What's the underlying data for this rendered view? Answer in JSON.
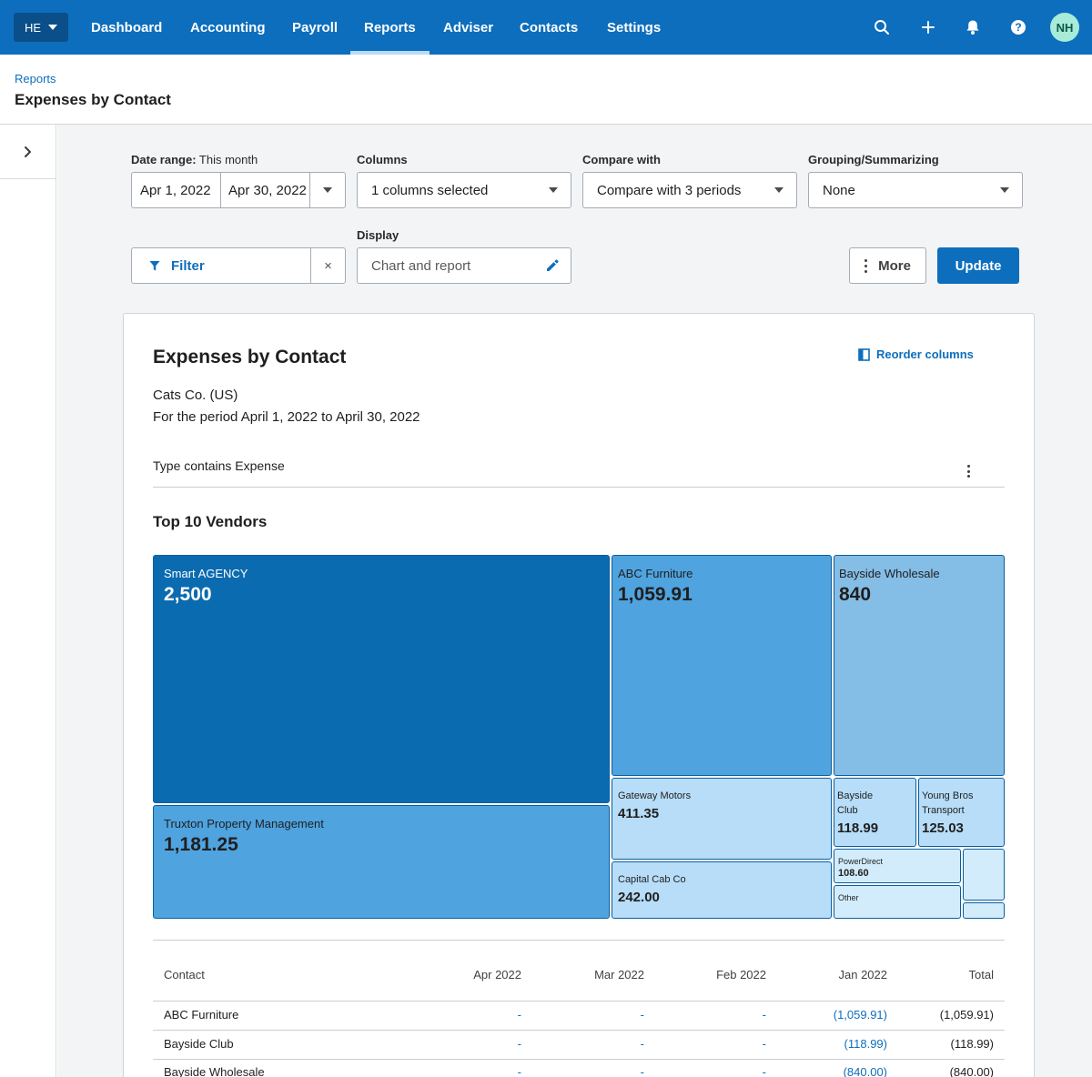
{
  "nav": {
    "org_initials": "HE",
    "items": [
      {
        "label": "Dashboard",
        "active": false
      },
      {
        "label": "Accounting",
        "active": false
      },
      {
        "label": "Payroll",
        "active": false
      },
      {
        "label": "Reports",
        "active": true
      },
      {
        "label": "Adviser",
        "active": false
      },
      {
        "label": "Contacts",
        "active": false
      },
      {
        "label": "Settings",
        "active": false
      }
    ],
    "icons": [
      "search-icon",
      "plus-icon",
      "bell-icon",
      "help-icon"
    ],
    "user_initials": "NH"
  },
  "header": {
    "breadcrumb": "Reports",
    "title": "Expenses by Contact"
  },
  "filters": {
    "date_range_label": "Date range:",
    "date_range_value": "This month",
    "date_start": "Apr 1, 2022",
    "date_end": "Apr 30, 2022",
    "columns_label": "Columns",
    "columns_value": "1 columns selected",
    "compare_label": "Compare with",
    "compare_value": "Compare with 3 periods",
    "grouping_label": "Grouping/Summarizing",
    "grouping_value": "None",
    "filter_button": "Filter",
    "clear_symbol": "×",
    "display_label": "Display",
    "display_value": "Chart and report",
    "more_button": "More",
    "update_button": "Update"
  },
  "report": {
    "title": "Expenses by Contact",
    "organization": "Cats Co. (US)",
    "period": "For the period April 1, 2022 to April 30, 2022",
    "filter_note": "Type contains Expense",
    "reorder_label": "Reorder columns"
  },
  "chart_data": {
    "type": "treemap",
    "title": "Top 10 Vendors",
    "tiles": [
      {
        "name": "Smart AGENCY",
        "value": 2500,
        "label": "2,500",
        "color": "#0b6bb0"
      },
      {
        "name": "Truxton Property Management",
        "value": 1181.25,
        "label": "1,181.25",
        "color": "#4fa3df"
      },
      {
        "name": "ABC Furniture",
        "value": 1059.91,
        "label": "1,059.91",
        "color": "#4fa3df"
      },
      {
        "name": "Bayside Wholesale",
        "value": 840,
        "label": "840",
        "color": "#84bde5"
      },
      {
        "name": "Gateway Motors",
        "value": 411.35,
        "label": "411.35",
        "color": "#b7ddf8"
      },
      {
        "name": "Capital Cab Co",
        "value": 242.0,
        "label": "242.00",
        "color": "#b7ddf8"
      },
      {
        "name": "Bayside Club",
        "value": 118.99,
        "label": "118.99",
        "color": "#b7ddf8"
      },
      {
        "name": "Young Bros Transport",
        "value": 125.03,
        "label": "125.03",
        "color": "#b7ddf8"
      },
      {
        "name": "PowerDirect",
        "value": 108.6,
        "label": "108.60",
        "color": "#d2ecfb"
      },
      {
        "name": "Other",
        "value": null,
        "label": "",
        "color": "#d2ecfb"
      }
    ]
  },
  "table": {
    "columns": [
      "Contact",
      "Apr 2022",
      "Mar 2022",
      "Feb 2022",
      "Jan 2022",
      "Total"
    ],
    "rows": [
      {
        "contact": "ABC Furniture",
        "apr": "-",
        "mar": "-",
        "feb": "-",
        "jan": "(1,059.91)",
        "total": "(1,059.91)"
      },
      {
        "contact": "Bayside Club",
        "apr": "-",
        "mar": "-",
        "feb": "-",
        "jan": "(118.99)",
        "total": "(118.99)"
      },
      {
        "contact": "Bayside Wholesale",
        "apr": "-",
        "mar": "-",
        "feb": "-",
        "jan": "(840.00)",
        "total": "(840.00)"
      }
    ]
  },
  "colors": {
    "brand": "#0d6ebd",
    "nav_active_underline": "#b9dcf5",
    "avatar_bg": "#a8ebd8",
    "page_bg": "#f2f4f6"
  }
}
